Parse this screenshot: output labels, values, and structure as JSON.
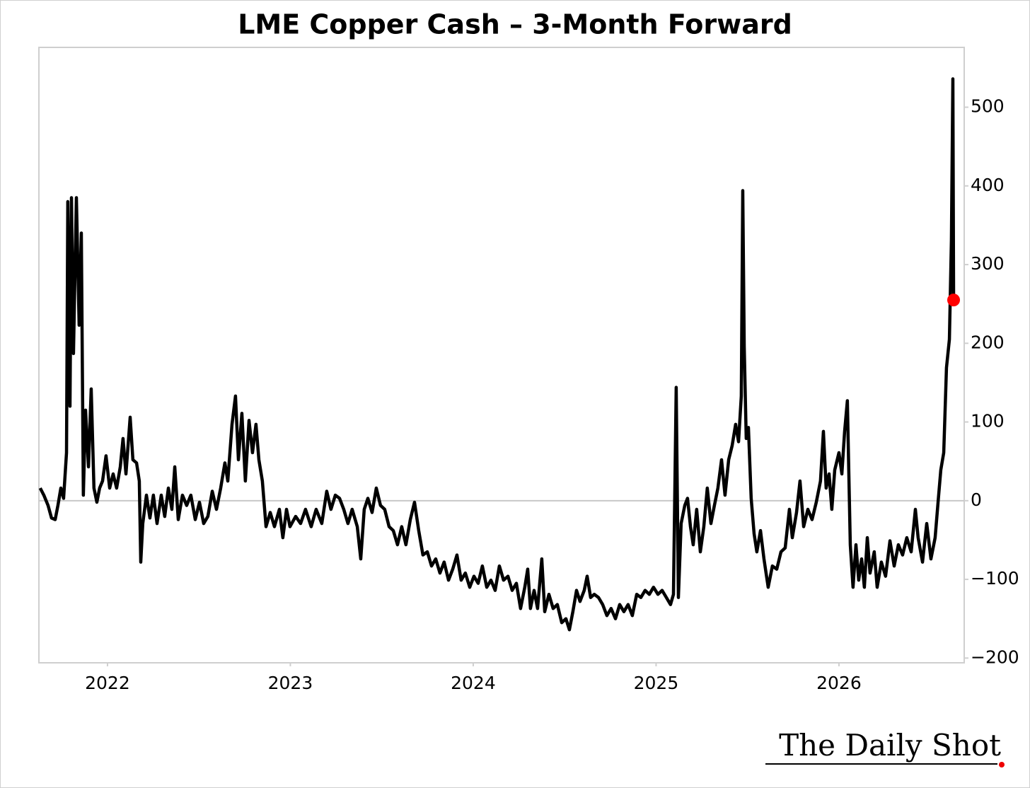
{
  "chart_data": {
    "type": "line",
    "title": "LME Copper Cash – 3-Month Forward",
    "color": "#000000",
    "last_point_color": "#ff0000",
    "zero_line": true,
    "xlim": [
      2021.625,
      2026.685
    ],
    "xticks": [
      2022,
      2023,
      2024,
      2025,
      2026
    ],
    "ylim": [
      -206,
      576
    ],
    "yticks": [
      {
        "value": -200,
        "label": "−200"
      },
      {
        "value": -100,
        "label": "−100"
      },
      0,
      100,
      200,
      300,
      400,
      500
    ],
    "x": [
      2021.632,
      2021.652,
      2021.675,
      2021.694,
      2021.714,
      2021.729,
      2021.745,
      2021.76,
      2021.776,
      2021.783,
      2021.795,
      2021.803,
      2021.814,
      2021.83,
      2021.845,
      2021.857,
      2021.868,
      2021.88,
      2021.896,
      2021.911,
      2021.926,
      2021.942,
      2021.957,
      2021.973,
      2021.992,
      2022.012,
      2022.031,
      2022.05,
      2022.07,
      2022.085,
      2022.101,
      2022.124,
      2022.139,
      2022.159,
      2022.174,
      2022.182,
      2022.193,
      2022.213,
      2022.232,
      2022.251,
      2022.271,
      2022.294,
      2022.313,
      2022.333,
      2022.352,
      2022.368,
      2022.387,
      2022.41,
      2022.433,
      2022.456,
      2022.48,
      2022.503,
      2022.526,
      2022.549,
      2022.573,
      2022.596,
      2022.619,
      2022.642,
      2022.658,
      2022.681,
      2022.7,
      2022.716,
      2022.735,
      2022.754,
      2022.774,
      2022.793,
      2022.812,
      2022.828,
      2022.847,
      2022.867,
      2022.89,
      2022.913,
      2022.94,
      2022.959,
      2022.979,
      2022.998,
      2023.029,
      2023.056,
      2023.083,
      2023.114,
      2023.141,
      2023.172,
      2023.199,
      2023.222,
      2023.246,
      2023.269,
      2023.292,
      2023.315,
      2023.338,
      2023.366,
      2023.385,
      2023.404,
      2023.424,
      2023.447,
      2023.47,
      2023.493,
      2023.516,
      2023.54,
      2023.563,
      2023.586,
      2023.609,
      2023.632,
      2023.656,
      2023.679,
      2023.702,
      2023.725,
      2023.749,
      2023.772,
      2023.795,
      2023.818,
      2023.841,
      2023.865,
      2023.888,
      2023.911,
      2023.934,
      2023.957,
      2023.981,
      2024.004,
      2024.027,
      2024.05,
      2024.074,
      2024.097,
      2024.12,
      2024.143,
      2024.166,
      2024.19,
      2024.213,
      2024.236,
      2024.259,
      2024.282,
      2024.298,
      2024.313,
      2024.333,
      2024.352,
      2024.375,
      2024.391,
      2024.414,
      2024.437,
      2024.46,
      2024.484,
      2024.507,
      2024.526,
      2024.545,
      2024.565,
      2024.584,
      2024.607,
      2024.623,
      2024.642,
      2024.662,
      2024.685,
      2024.708,
      2024.731,
      2024.754,
      2024.778,
      2024.801,
      2024.824,
      2024.847,
      2024.87,
      2024.894,
      2024.917,
      2024.94,
      2024.963,
      2024.986,
      2025.01,
      2025.033,
      2025.056,
      2025.079,
      2025.095,
      2025.11,
      2025.122,
      2025.137,
      2025.157,
      2025.172,
      2025.188,
      2025.203,
      2025.222,
      2025.242,
      2025.261,
      2025.28,
      2025.3,
      2025.319,
      2025.338,
      2025.358,
      2025.377,
      2025.397,
      2025.416,
      2025.435,
      2025.451,
      2025.466,
      2025.474,
      2025.482,
      2025.493,
      2025.505,
      2025.52,
      2025.536,
      2025.551,
      2025.571,
      2025.59,
      2025.613,
      2025.636,
      2025.66,
      2025.683,
      2025.706,
      2025.729,
      2025.745,
      2025.768,
      2025.787,
      2025.807,
      2025.83,
      2025.853,
      2025.876,
      2025.899,
      2025.915,
      2025.93,
      2025.946,
      2025.961,
      2025.977,
      2026.0,
      2026.016,
      2026.031,
      2026.046,
      2026.062,
      2026.077,
      2026.093,
      2026.108,
      2026.124,
      2026.139,
      2026.155,
      2026.17,
      2026.193,
      2026.209,
      2026.232,
      2026.255,
      2026.279,
      2026.302,
      2026.325,
      2026.348,
      2026.371,
      2026.395,
      2026.418,
      2026.433,
      2026.457,
      2026.48,
      2026.503,
      2026.526,
      2026.542,
      2026.557,
      2026.573,
      2026.588,
      2026.604,
      2026.615,
      2026.623,
      2026.627
    ],
    "values": [
      16,
      7,
      -6,
      -22,
      -24,
      -6,
      16,
      3,
      61,
      380,
      120,
      385,
      187,
      385,
      223,
      340,
      7,
      115,
      43,
      142,
      16,
      -2,
      16,
      25,
      57,
      16,
      34,
      16,
      43,
      79,
      34,
      106,
      52,
      48,
      25,
      -78,
      -29,
      7,
      -22,
      7,
      -29,
      7,
      -20,
      16,
      -11,
      43,
      -24,
      7,
      -6,
      7,
      -24,
      -2,
      -29,
      -20,
      12,
      -11,
      16,
      48,
      25,
      97,
      133,
      52,
      111,
      25,
      102,
      61,
      97,
      52,
      25,
      -33,
      -15,
      -33,
      -11,
      -47,
      -11,
      -33,
      -20,
      -29,
      -11,
      -33,
      -11,
      -29,
      12,
      -11,
      7,
      3,
      -11,
      -29,
      -11,
      -33,
      -74,
      -11,
      3,
      -15,
      16,
      -6,
      -11,
      -33,
      -38,
      -56,
      -33,
      -56,
      -24,
      -2,
      -38,
      -69,
      -65,
      -83,
      -74,
      -92,
      -78,
      -101,
      -87,
      -69,
      -101,
      -92,
      -110,
      -96,
      -105,
      -83,
      -110,
      -101,
      -114,
      -83,
      -101,
      -96,
      -114,
      -105,
      -137,
      -110,
      -87,
      -137,
      -114,
      -137,
      -74,
      -141,
      -119,
      -137,
      -132,
      -155,
      -150,
      -164,
      -141,
      -114,
      -128,
      -114,
      -96,
      -123,
      -119,
      -123,
      -132,
      -146,
      -137,
      -150,
      -132,
      -141,
      -132,
      -146,
      -119,
      -123,
      -114,
      -119,
      -110,
      -119,
      -114,
      -123,
      -132,
      -119,
      144,
      -123,
      -29,
      -6,
      3,
      -33,
      -56,
      -11,
      -65,
      -33,
      16,
      -29,
      -6,
      16,
      52,
      7,
      52,
      70,
      97,
      75,
      133,
      394,
      196,
      79,
      93,
      3,
      -42,
      -65,
      -38,
      -74,
      -110,
      -83,
      -87,
      -65,
      -60,
      -11,
      -47,
      -15,
      25,
      -33,
      -11,
      -24,
      -2,
      25,
      88,
      16,
      34,
      -11,
      39,
      61,
      34,
      88,
      127,
      -56,
      -110,
      -56,
      -101,
      -74,
      -110,
      -47,
      -92,
      -65,
      -110,
      -78,
      -96,
      -51,
      -83,
      -56,
      -69,
      -47,
      -65,
      -11,
      -47,
      -78,
      -29,
      -74,
      -47,
      -2,
      39,
      61,
      169,
      205,
      331,
      536,
      255
    ]
  },
  "logo": "The Daily Shot"
}
